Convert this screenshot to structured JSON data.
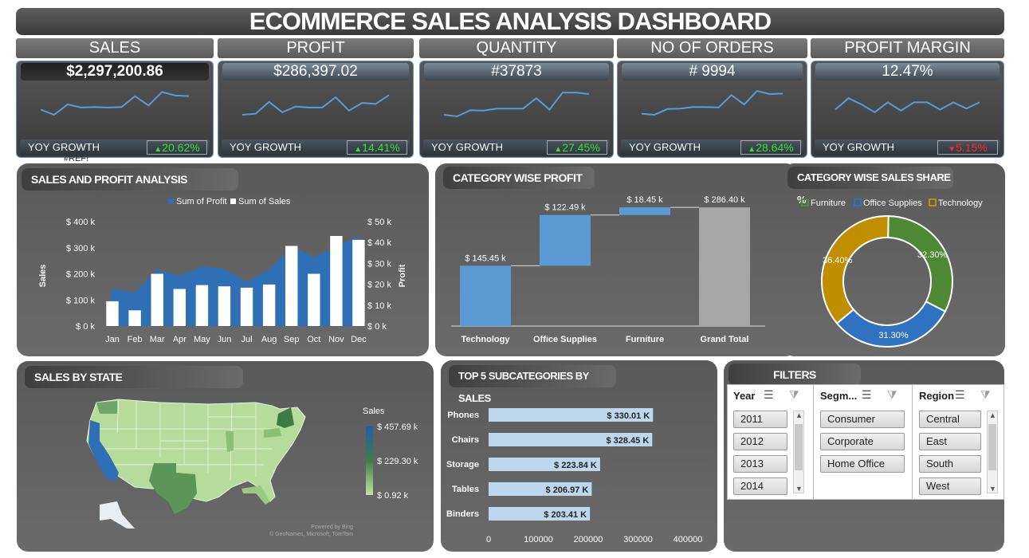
{
  "title": "ECOMMERCE SALES ANALYSIS DASHBOARD",
  "kpis": [
    {
      "label": "SALES",
      "value": "$2,297,200.86",
      "yoy_label": "YOY GROWTH",
      "growth": "20.62%",
      "dir": "up",
      "spark": [
        3,
        2,
        4,
        3.4,
        3.5,
        3.4,
        3.5,
        5.6,
        3.8,
        6.4,
        5.7,
        5.6
      ]
    },
    {
      "label": "PROFIT",
      "value": "$286,397.02",
      "yoy_label": "YOY GROWTH",
      "growth": "14.41%",
      "dir": "up",
      "spark": [
        2,
        2.2,
        4.5,
        2.5,
        3.6,
        3.4,
        3.4,
        5.4,
        2.8,
        4.3,
        4.1,
        5.8
      ]
    },
    {
      "label": "QUANTITY",
      "value": "#37873",
      "yoy_label": "YOY GROWTH",
      "growth": "27.45%",
      "dir": "up",
      "spark": [
        2,
        1.7,
        2.9,
        2.8,
        3.2,
        3.2,
        3.2,
        5.2,
        3,
        6.3,
        6.3,
        6
      ]
    },
    {
      "label": "NO OF ORDERS",
      "value": "# 9994",
      "yoy_label": "YOY GROWTH",
      "growth": "28.64%",
      "dir": "up",
      "spark": [
        2.2,
        2,
        3.1,
        3.2,
        3.5,
        3.5,
        3.4,
        5.8,
        4,
        6.6,
        6,
        6.1
      ]
    },
    {
      "label": "PROFIT MARGIN",
      "value": "12.47%",
      "yoy_label": "YOY GROWTH",
      "growth": "5.15%",
      "dir": "down",
      "spark": [
        3,
        5.2,
        4,
        2.5,
        4.4,
        2.8,
        4.4,
        4.4,
        3,
        4.4,
        3.2,
        4.4
      ]
    }
  ],
  "ref_error": "#REF!",
  "chart_data": [
    {
      "type": "bar",
      "title": "SALES AND PROFIT ANALYSIS",
      "categories": [
        "Jan",
        "Feb",
        "Mar",
        "Apr",
        "May",
        "Jun",
        "Jul",
        "Aug",
        "Sep",
        "Oct",
        "Nov",
        "Dec"
      ],
      "series": [
        {
          "name": "Sum of Profit",
          "kind": "area",
          "axis": "right",
          "values": [
            18000,
            16000,
            27000,
            24000,
            28500,
            27500,
            21000,
            27000,
            38000,
            33000,
            38000,
            43000
          ],
          "color": "#2e6fb5"
        },
        {
          "name": "Sum of Sales",
          "kind": "bar",
          "axis": "left",
          "values": [
            95000,
            60000,
            200000,
            142000,
            157000,
            152000,
            147000,
            159000,
            307000,
            200000,
            345000,
            330000
          ],
          "color": "#ffffff"
        }
      ],
      "ylabel": "Sales",
      "y2label": "Profit",
      "ylim": [
        0,
        400000
      ],
      "y2lim": [
        0,
        50000
      ],
      "yticks": [
        "$ 0 k",
        "$ 100 k",
        "$ 200 k",
        "$ 300 k",
        "$ 400 k"
      ],
      "y2ticks": [
        "$ 0 k",
        "$ 10 k",
        "$ 20 k",
        "$ 30 k",
        "$ 40 k",
        "$ 50 k"
      ],
      "legend": "top"
    },
    {
      "type": "bar",
      "subtype": "waterfall",
      "title": "CATEGORY WISE PROFIT",
      "categories": [
        "Technology",
        "Office Supplies",
        "Furniture",
        "Grand Total"
      ],
      "values": [
        145.45,
        122.49,
        18.45,
        286.4
      ],
      "labels": [
        "$ 145.45 k",
        "$ 122.49 k",
        "$ 18.45 k",
        "$ 286.40 k"
      ],
      "ylim": [
        0,
        300
      ]
    },
    {
      "type": "pie",
      "subtype": "donut",
      "title": "CATEGORY WISE SALES SHARE %",
      "categories": [
        "Furniture",
        "Office Supplies",
        "Technology"
      ],
      "values": [
        32.3,
        31.3,
        36.4
      ],
      "labels": [
        "32.30%",
        "31.30%",
        "36.40%"
      ],
      "colors": [
        "#4e8a35",
        "#2e72c0",
        "#c08f00"
      ],
      "legend": "top"
    },
    {
      "type": "bar",
      "orientation": "horizontal",
      "title": "TOP 5 SUBCATEGORIES BY SALES",
      "categories": [
        "Phones",
        "Chairs",
        "Storage",
        "Tables",
        "Binders"
      ],
      "values": [
        330.01,
        328.45,
        223.84,
        206.97,
        203.41
      ],
      "labels": [
        "$ 330.01 K",
        "$ 328.45 K",
        "$ 223.84 K",
        "$ 206.97 K",
        "$ 203.41 K"
      ],
      "xticks": [
        "0",
        "100000",
        "200000",
        "300000",
        "400000"
      ],
      "xlim": [
        0,
        400000
      ]
    }
  ],
  "map": {
    "title": "SALES BY STATE",
    "legend_title": "Sales",
    "legend_max": "$ 457.69 k",
    "legend_mid": "$ 229.30 k",
    "legend_min": "$ 0.92 k",
    "credit1": "Powered by Bing",
    "credit2": "© GeoNames, Microsoft, TomTom"
  },
  "filters": {
    "title": "FILTERS",
    "slicers": [
      {
        "label": "Year",
        "items": [
          "2011",
          "2012",
          "2013",
          "2014"
        ]
      },
      {
        "label": "Segm...",
        "items": [
          "Consumer",
          "Corporate",
          "Home Office"
        ]
      },
      {
        "label": "Region",
        "items": [
          "Central",
          "East",
          "South",
          "West"
        ]
      }
    ]
  }
}
